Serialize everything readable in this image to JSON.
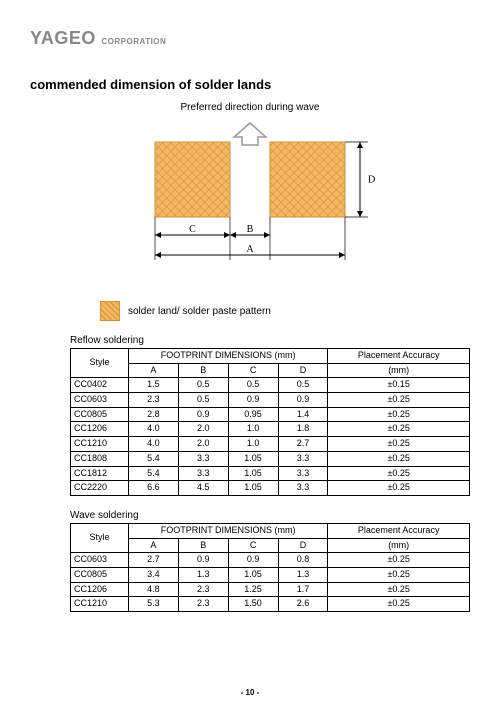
{
  "logo": {
    "main": "YAGEO",
    "sub": "CORPORATION",
    "color": "#999999"
  },
  "section_title": "commended dimension of solder lands",
  "preferred_label": "Preferred direction during wave",
  "diagram": {
    "pad_color": "#f4b765",
    "pad_border": "#d49335",
    "dim_labels": {
      "A": "A",
      "B": "B",
      "C": "C",
      "D": "D"
    },
    "pad_w": 75,
    "pad_h": 75,
    "gap": 40,
    "arrow_color": "#999999"
  },
  "legend": {
    "label": "solder land/ solder paste pattern"
  },
  "reflow": {
    "caption": "Reflow soldering",
    "header_group": {
      "style": "Style",
      "footprint": "FOOTPRINT DIMENSIONS (mm)",
      "placement": "Placement Accuracy"
    },
    "subhead": [
      "A",
      "B",
      "C",
      "D",
      "(mm)"
    ],
    "rows": [
      [
        "CC0402",
        "1.5",
        "0.5",
        "0.5",
        "0.5",
        "±0.15"
      ],
      [
        "CC0603",
        "2.3",
        "0.5",
        "0.9",
        "0.9",
        "±0.25"
      ],
      [
        "CC0805",
        "2.8",
        "0.9",
        "0.95",
        "1.4",
        "±0.25"
      ],
      [
        "CC1206",
        "4.0",
        "2.0",
        "1.0",
        "1.8",
        "±0.25"
      ],
      [
        "CC1210",
        "4.0",
        "2.0",
        "1.0",
        "2.7",
        "±0.25"
      ],
      [
        "CC1808",
        "5.4",
        "3.3",
        "1.05",
        "3.3",
        "±0.25"
      ],
      [
        "CC1812",
        "5.4",
        "3.3",
        "1.05",
        "3.3",
        "±0.25"
      ],
      [
        "CC2220",
        "6.6",
        "4.5",
        "1.05",
        "3.3",
        "±0.25"
      ]
    ]
  },
  "wave": {
    "caption": "Wave soldering",
    "header_group": {
      "style": "Style",
      "footprint": "FOOTPRINT DIMENSIONS (mm)",
      "placement": "Placement Accuracy"
    },
    "subhead": [
      "A",
      "B",
      "C",
      "D",
      "(mm)"
    ],
    "rows": [
      [
        "CC0603",
        "2.7",
        "0.9",
        "0.9",
        "0.8",
        "±0.25"
      ],
      [
        "CC0805",
        "3.4",
        "1.3",
        "1.05",
        "1.3",
        "±0.25"
      ],
      [
        "CC1206",
        "4.8",
        "2.3",
        "1.25",
        "1.7",
        "±0.25"
      ],
      [
        "CC1210",
        "5.3",
        "2.3",
        "1.50",
        "2.6",
        "±0.25"
      ]
    ]
  },
  "page_number": "- 10 -"
}
